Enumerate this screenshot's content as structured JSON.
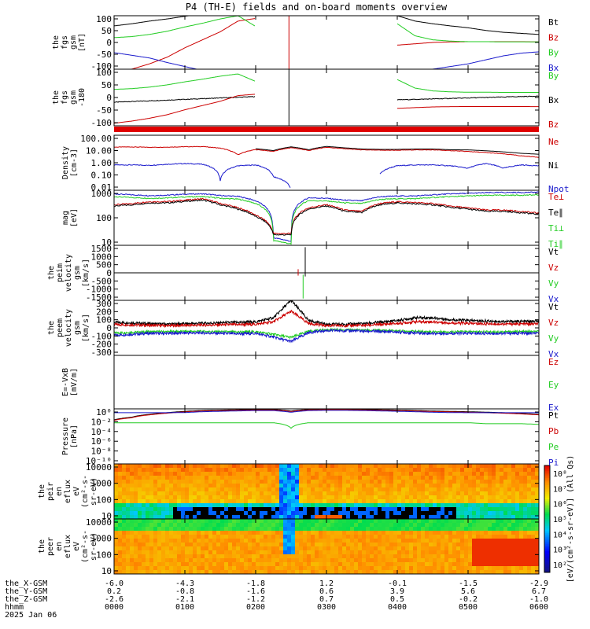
{
  "title": "P4 (TH-E) fields and on-board moments overview",
  "colors": {
    "black": "#000000",
    "red": "#cc0000",
    "green": "#22cc22",
    "blue": "#1a1acc"
  },
  "panels": [
    {
      "id": "fgs",
      "ylabel": [
        "the",
        "fgs",
        "gsm",
        "[nT]"
      ],
      "ticks": [
        "100",
        "50",
        "0",
        "-50",
        "-100"
      ],
      "ylim": [
        -100,
        100
      ],
      "legend": [
        {
          "text": "Bt",
          "color": "black"
        },
        {
          "text": "Bz",
          "color": "red"
        },
        {
          "text": "By",
          "color": "green"
        },
        {
          "text": "Bx",
          "color": "blue"
        }
      ]
    },
    {
      "id": "fgs2",
      "ylabel": [
        "the",
        "fgs",
        "gsm",
        "-180"
      ],
      "ticks": [
        "100",
        "50",
        "0",
        "-50",
        "-100"
      ],
      "ylim": [
        -120,
        120
      ],
      "legend": [
        {
          "text": "By",
          "color": "green"
        },
        {
          "text": "Bx",
          "color": "black"
        },
        {
          "text": "Bz",
          "color": "red"
        }
      ]
    },
    {
      "id": "density",
      "ylabel": [
        "Density",
        "[cm-3]"
      ],
      "ticks": [
        "100.00",
        "10.00",
        "1.00",
        "0.10",
        "0.01"
      ],
      "ylim": [
        0.003,
        300
      ],
      "legend": [
        {
          "text": "Ne",
          "color": "red"
        },
        {
          "text": "Ni",
          "color": "black"
        },
        {
          "text": "Npot",
          "color": "blue"
        }
      ]
    },
    {
      "id": "temp",
      "ylabel": [
        "mag",
        "[eV]"
      ],
      "ticks": [
        "1000",
        "100",
        "10"
      ],
      "ylim": [
        3,
        4000
      ],
      "legend": [
        {
          "text": "Te⊥",
          "color": "red"
        },
        {
          "text": "Te∥",
          "color": "black"
        },
        {
          "text": "Ti⊥",
          "color": "green"
        },
        {
          "text": "Ti∥",
          "color": "green"
        }
      ]
    },
    {
      "id": "peim",
      "ylabel": [
        "the",
        "peim",
        "velocity",
        "gsm",
        "[km/s]"
      ],
      "ticks": [
        "1500",
        "1000",
        "500",
        "0",
        "-500",
        "-1000",
        "-1500"
      ],
      "ylim": [
        -1500,
        1500
      ],
      "legend": [
        {
          "text": "Vt",
          "color": "black"
        },
        {
          "text": "Vz",
          "color": "red"
        },
        {
          "text": "Vy",
          "color": "green"
        },
        {
          "text": "Vx",
          "color": "blue"
        }
      ]
    },
    {
      "id": "peem",
      "ylabel": [
        "the",
        "peem",
        "velocity",
        "gsm",
        "[km/s]"
      ],
      "ticks": [
        "300",
        "200",
        "100",
        "0",
        "-100",
        "-200",
        "-300"
      ],
      "ylim": [
        -300,
        300
      ],
      "legend": [
        {
          "text": "Vt",
          "color": "black"
        },
        {
          "text": "Vz",
          "color": "red"
        },
        {
          "text": "Vy",
          "color": "green"
        },
        {
          "text": "Vx",
          "color": "blue"
        }
      ]
    },
    {
      "id": "efield",
      "ylabel": [
        "E=-VxB",
        "[mV/m]"
      ],
      "ticks": [],
      "ylim": [
        -1,
        1
      ],
      "legend": [
        {
          "text": "Ez",
          "color": "red"
        },
        {
          "text": "Ey",
          "color": "green"
        },
        {
          "text": "Ex",
          "color": "blue"
        }
      ]
    },
    {
      "id": "pressure",
      "ylabel": [
        "Pressure",
        "[nPa]"
      ],
      "ticks": [
        "10⁰",
        "10⁻²",
        "10⁻⁴",
        "10⁻⁶",
        "10⁻⁸",
        "10⁻¹⁰"
      ],
      "ylim": [
        1e-10,
        1
      ],
      "legend": [
        {
          "text": "Pt",
          "color": "black"
        },
        {
          "text": "Pb",
          "color": "red"
        },
        {
          "text": "Pe",
          "color": "green"
        },
        {
          "text": "Pi",
          "color": "blue"
        }
      ]
    },
    {
      "id": "peir",
      "ylabel": [
        "the",
        "peir",
        "en",
        "eflux",
        "eV",
        "(cm²-s-",
        "sr-eV)"
      ],
      "ticks": [
        "10000",
        "1000",
        "100",
        "10"
      ],
      "ylim": [
        5,
        30000
      ],
      "legend": []
    },
    {
      "id": "peer",
      "ylabel": [
        "the",
        "peer",
        "en",
        "eflux",
        "eV",
        "(cm²-s-",
        "sr-eV)"
      ],
      "ticks": [
        "10000",
        "1000",
        "100",
        "10"
      ],
      "ylim": [
        5,
        30000
      ],
      "legend": []
    }
  ],
  "colorbar": {
    "ticks": [
      "10⁸",
      "10⁷",
      "10⁶",
      "10⁵",
      "10⁴",
      "10³",
      "10²"
    ],
    "label": "[eV/(cm²-s-sr-eV)] (All Qs)"
  },
  "ephem": {
    "rows": [
      {
        "label": "the_X-GSM",
        "values": [
          "-6.0",
          "-4.3",
          "-1.8",
          "1.2",
          "-0.1",
          "-1.5",
          "-2.9"
        ]
      },
      {
        "label": "the_Y-GSM",
        "values": [
          "0.2",
          "-0.8",
          "-1.6",
          "0.6",
          "3.9",
          "5.6",
          "6.7"
        ]
      },
      {
        "label": "the_Z-GSM",
        "values": [
          "-2.6",
          "-2.1",
          "-1.2",
          "0.7",
          "0.5",
          "-0.2",
          "-1.0"
        ]
      },
      {
        "label": "hhmm",
        "values": [
          "0000",
          "0100",
          "0200",
          "0300",
          "0400",
          "0500",
          "0600"
        ]
      }
    ],
    "date": "2025 Jan 06"
  },
  "chart_data": {
    "type": "line",
    "x_time_hours": [
      0,
      0.25,
      0.5,
      0.75,
      1,
      1.25,
      1.5,
      1.75,
      2,
      2.25,
      2.5,
      2.75,
      3,
      3.25,
      3.5,
      3.75,
      4,
      4.25,
      4.5,
      4.75,
      5,
      5.25,
      5.5,
      5.75,
      6
    ],
    "x_ticks": [
      "0000",
      "0100",
      "0200",
      "0300",
      "0400",
      "0500",
      "0600"
    ],
    "series": {
      "fgs_Bt": [
        62,
        70,
        80,
        88,
        98,
        108,
        118,
        125,
        110,
        null,
        null,
        null,
        null,
        null,
        null,
        null,
        100,
        80,
        70,
        62,
        55,
        45,
        38,
        34,
        30
      ],
      "fgs_Bz": [
        -115,
        -100,
        -80,
        -55,
        -20,
        10,
        40,
        80,
        90,
        null,
        null,
        null,
        null,
        null,
        null,
        null,
        -10,
        -5,
        0,
        2,
        3,
        3,
        3,
        3,
        2
      ],
      "fgs_By": [
        18,
        22,
        30,
        42,
        58,
        72,
        88,
        100,
        60,
        null,
        null,
        null,
        null,
        null,
        null,
        null,
        70,
        25,
        10,
        5,
        3,
        3,
        2,
        2,
        2
      ],
      "fgs_Bx": [
        -38,
        -48,
        -58,
        -75,
        -90,
        -105,
        -115,
        -120,
        -120,
        null,
        null,
        null,
        null,
        null,
        null,
        null,
        -120,
        -115,
        -100,
        -90,
        -80,
        -65,
        -50,
        -40,
        -35
      ],
      "density_Ne": [
        25,
        26,
        24,
        25,
        27,
        28,
        20,
        5,
        15,
        10,
        22,
        12,
        24,
        18,
        14,
        13,
        13,
        14,
        14,
        12,
        10,
        8,
        6,
        4,
        3
      ],
      "density_Npot": [
        0.6,
        0.6,
        0.55,
        0.7,
        0.8,
        0.7,
        0.02,
        0.5,
        0.6,
        0.05,
        0.003,
        null,
        null,
        null,
        null,
        0.08,
        0.5,
        0.6,
        0.6,
        0.5,
        0.3,
        0.8,
        0.3,
        0.6,
        0.5
      ],
      "temp_Te_perp": [
        600,
        700,
        900,
        900,
        1100,
        1300,
        700,
        400,
        150,
        14,
        14,
        400,
        600,
        300,
        250,
        700,
        900,
        800,
        700,
        500,
        400,
        300,
        300,
        250,
        200
      ],
      "temp_Ti_perp": [
        2500,
        2200,
        2000,
        2100,
        2400,
        2500,
        2000,
        1800,
        1000,
        8,
        5,
        1500,
        1400,
        1100,
        1000,
        1700,
        1900,
        1900,
        2200,
        2500,
        2700,
        2900,
        3000,
        3000,
        3100
      ],
      "peem_Vt": [
        60,
        55,
        45,
        40,
        45,
        50,
        55,
        60,
        65,
        110,
        300,
        80,
        40,
        40,
        45,
        60,
        80,
        110,
        110,
        90,
        80,
        75,
        70,
        70,
        70
      ],
      "peem_Vx": [
        -80,
        -70,
        -60,
        -60,
        -55,
        -55,
        -60,
        -65,
        -60,
        -100,
        -150,
        -50,
        -30,
        -30,
        -35,
        -40,
        -45,
        -55,
        -60,
        -60,
        -60,
        -60,
        -60,
        -60,
        -60
      ],
      "pressure_Pt": [
        0.01,
        0.03,
        0.1,
        0.2,
        0.35,
        0.5,
        0.6,
        0.7,
        0.8,
        0.8,
        0.4,
        0.8,
        0.9,
        0.9,
        0.8,
        0.7,
        0.6,
        0.5,
        0.4,
        0.35,
        0.3,
        0.25,
        0.2,
        0.15,
        0.1
      ],
      "pressure_Pe": [
        0.003,
        0.003,
        0.003,
        0.003,
        0.003,
        0.003,
        0.003,
        0.003,
        0.003,
        0.003,
        0.0003,
        0.003,
        0.003,
        0.003,
        0.003,
        0.003,
        0.003,
        0.003,
        0.003,
        0.003,
        0.003,
        0.002,
        0.002,
        0.002,
        0.0015
      ]
    }
  }
}
